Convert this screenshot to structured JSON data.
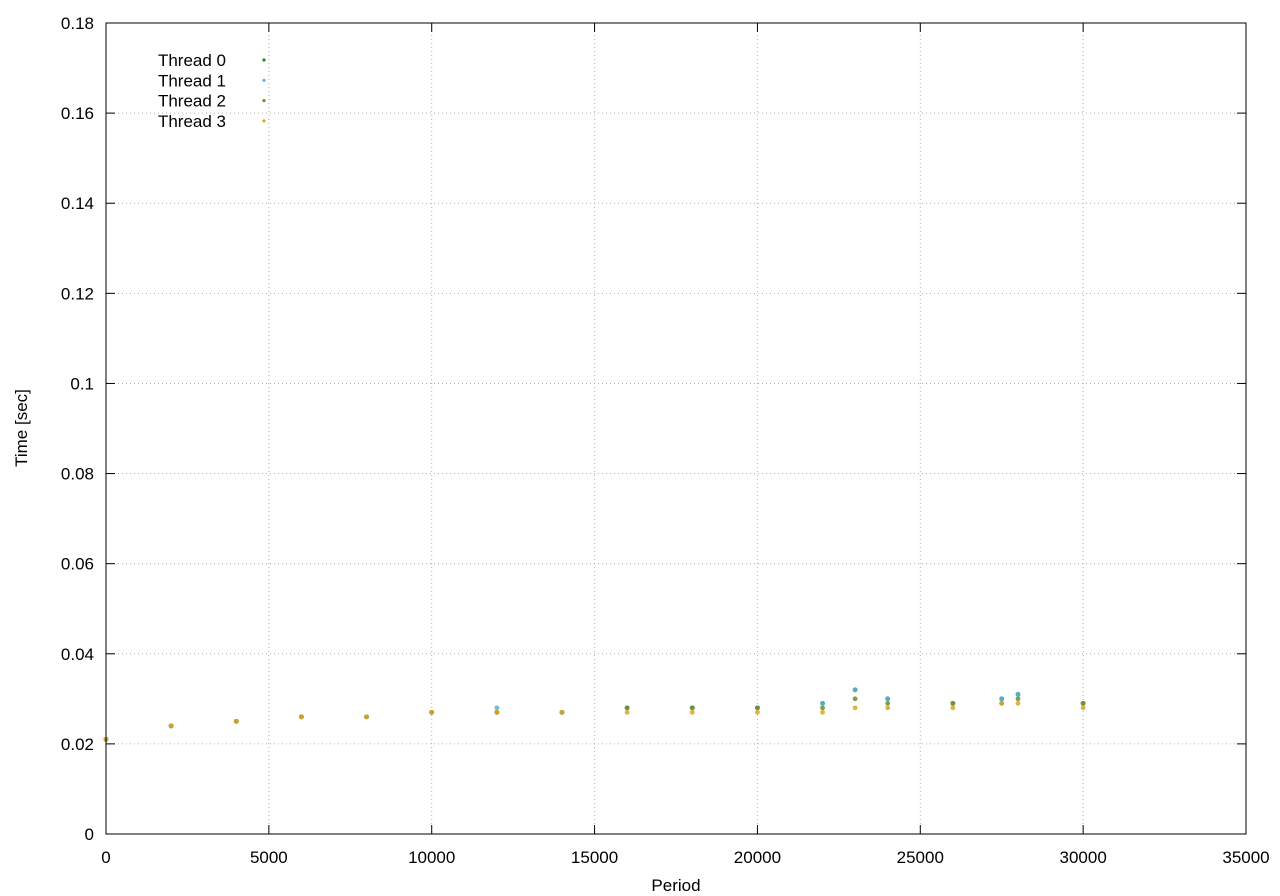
{
  "chart_data": {
    "type": "scatter",
    "title": "",
    "xlabel": "Period",
    "ylabel": "Time [sec]",
    "xlim": [
      0,
      35000
    ],
    "ylim": [
      0,
      0.18
    ],
    "x_ticks": [
      0,
      5000,
      10000,
      15000,
      20000,
      25000,
      30000,
      35000
    ],
    "x_tick_labels": [
      "0",
      "5000",
      "10000",
      "15000",
      "20000",
      "25000",
      "30000",
      "35000"
    ],
    "y_ticks": [
      0,
      0.02,
      0.04,
      0.06,
      0.08,
      0.1,
      0.12,
      0.14,
      0.16,
      0.18
    ],
    "y_tick_labels": [
      "0",
      "0.02",
      "0.04",
      "0.06",
      "0.08",
      "0.1",
      "0.12",
      "0.14",
      "0.16",
      "0.18"
    ],
    "grid": true,
    "legend_position": "top-left",
    "series": [
      {
        "name": "Thread 0",
        "color": "#2e7d32",
        "x": [
          0,
          2000,
          4000,
          6000,
          8000,
          10000,
          12000,
          14000,
          16000,
          18000,
          20000,
          22000,
          23000,
          24000,
          26000,
          27500,
          28000,
          30000
        ],
        "values": [
          0.021,
          0.024,
          0.025,
          0.026,
          0.026,
          0.027,
          0.027,
          0.027,
          0.028,
          0.028,
          0.028,
          0.029,
          0.032,
          0.03,
          0.029,
          0.03,
          0.031,
          0.029
        ]
      },
      {
        "name": "Thread 1",
        "color": "#56b4d3",
        "x": [
          0,
          2000,
          4000,
          6000,
          8000,
          10000,
          12000,
          14000,
          16000,
          18000,
          20000,
          22000,
          23000,
          24000,
          26000,
          27500,
          28000,
          30000
        ],
        "values": [
          0.021,
          0.024,
          0.025,
          0.026,
          0.026,
          0.027,
          0.028,
          0.027,
          0.028,
          0.028,
          0.028,
          0.029,
          0.032,
          0.03,
          0.029,
          0.03,
          0.031,
          0.029
        ]
      },
      {
        "name": "Thread 2",
        "color": "#6f8e2c",
        "x": [
          0,
          2000,
          4000,
          6000,
          8000,
          10000,
          12000,
          14000,
          16000,
          18000,
          20000,
          22000,
          23000,
          24000,
          26000,
          27500,
          28000,
          30000
        ],
        "values": [
          0.021,
          0.024,
          0.025,
          0.026,
          0.026,
          0.027,
          0.027,
          0.027,
          0.028,
          0.028,
          0.028,
          0.028,
          0.03,
          0.029,
          0.029,
          0.029,
          0.03,
          0.029
        ]
      },
      {
        "name": "Thread 3",
        "color": "#e0a321",
        "x": [
          0,
          2000,
          4000,
          6000,
          8000,
          10000,
          12000,
          14000,
          16000,
          18000,
          20000,
          22000,
          23000,
          24000,
          26000,
          27500,
          28000,
          30000
        ],
        "values": [
          0.021,
          0.024,
          0.025,
          0.026,
          0.026,
          0.027,
          0.027,
          0.027,
          0.027,
          0.027,
          0.027,
          0.027,
          0.028,
          0.028,
          0.028,
          0.029,
          0.029,
          0.028
        ]
      }
    ],
    "x_range_of_data": [
      0,
      30200
    ]
  }
}
